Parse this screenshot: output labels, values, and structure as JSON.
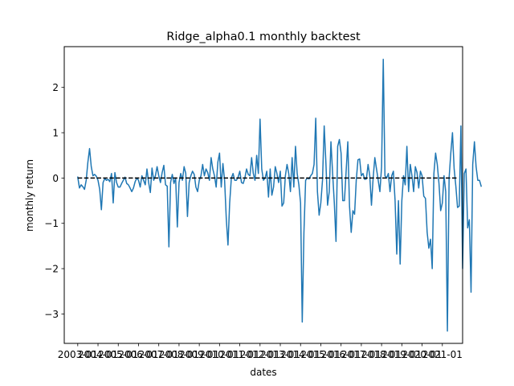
{
  "chart_data": {
    "type": "line",
    "title": "Ridge_alpha0.1 monthly backtest",
    "xlabel": "dates",
    "ylabel": "monthly return",
    "xlim": [
      "2002-05",
      "2022-01"
    ],
    "ylim": [
      -3.65,
      2.9
    ],
    "yticks": [
      2,
      1,
      0,
      -1,
      -2,
      -3
    ],
    "ytick_labels": [
      "2",
      "1",
      "0",
      "−1",
      "−2",
      "−3"
    ],
    "xtick_labels": [
      "2003-01",
      "2004-01",
      "2005-01",
      "2006-01",
      "2007-01",
      "2008-01",
      "2009-01",
      "2010-01",
      "2011-01",
      "2012-01",
      "2013-01",
      "2014-01",
      "2015-01",
      "2016-01",
      "2017-01",
      "2018-01",
      "2019-01",
      "2020-01",
      "2021-01"
    ],
    "grid": false,
    "series": [
      {
        "color": "#1f77b4",
        "start": "2003-01",
        "values": [
          0.02,
          -0.22,
          -0.15,
          -0.19,
          -0.25,
          -0.05,
          0.35,
          0.65,
          0.25,
          0.05,
          0.08,
          0.04,
          -0.05,
          -0.25,
          -0.7,
          -0.1,
          -0.01,
          -0.05,
          -0.03,
          -0.08,
          0.1,
          -0.55,
          0.12,
          -0.1,
          -0.2,
          -0.2,
          -0.12,
          -0.05,
          0.02,
          -0.12,
          -0.15,
          -0.22,
          -0.3,
          -0.22,
          -0.08,
          0.0,
          -0.05,
          -0.2,
          0.05,
          -0.05,
          -0.15,
          0.2,
          -0.1,
          -0.32,
          0.22,
          -0.05,
          0.05,
          0.25,
          0.05,
          -0.1,
          0.12,
          0.28,
          -0.15,
          -0.18,
          -1.52,
          -0.1,
          0.08,
          -0.12,
          0.0,
          -1.08,
          -0.1,
          0.1,
          -0.05,
          0.25,
          0.1,
          -0.85,
          -0.1,
          0.05,
          0.15,
          0.08,
          -0.2,
          -0.3,
          -0.05,
          0.05,
          0.3,
          0.05,
          0.2,
          0.12,
          -0.05,
          0.45,
          0.2,
          0.05,
          -0.2,
          0.35,
          0.55,
          -0.2,
          0.32,
          -0.05,
          -0.9,
          -1.48,
          -0.55,
          0.0,
          0.1,
          -0.05,
          -0.05,
          0.02,
          0.15,
          -0.1,
          -0.12,
          0.0,
          0.2,
          0.08,
          0.05,
          0.45,
          0.1,
          -0.05,
          0.5,
          0.1,
          1.3,
          0.2,
          -0.05,
          0.0,
          0.15,
          -0.42,
          0.2,
          -0.38,
          -0.2,
          0.25,
          0.1,
          -0.1,
          0.15,
          -0.62,
          -0.55,
          0.05,
          0.3,
          0.1,
          -0.3,
          0.45,
          -0.2,
          0.7,
          0.1,
          -0.15,
          -0.55,
          -3.18,
          -1.2,
          -0.05,
          0.0,
          -0.02,
          0.05,
          0.1,
          0.3,
          1.32,
          -0.3,
          -0.82,
          -0.55,
          -0.05,
          1.15,
          0.35,
          -0.6,
          -0.3,
          0.8,
          0.1,
          -0.55,
          -1.4,
          0.7,
          0.85,
          0.55,
          -0.5,
          -0.5,
          0.15,
          0.8,
          -0.62,
          -1.2,
          -0.72,
          -0.8,
          -0.05,
          0.4,
          0.42,
          0.05,
          0.1,
          -0.03,
          -0.02,
          0.3,
          0.05,
          -0.6,
          0.0,
          0.45,
          0.2,
          -0.05,
          -0.3,
          0.25,
          2.62,
          0.05,
          0.0,
          0.1,
          -0.3,
          0.05,
          0.15,
          -0.5,
          -1.68,
          -0.5,
          -1.9,
          -0.5,
          0.05,
          -0.15,
          0.7,
          -0.3,
          0.3,
          0.05,
          -0.3,
          0.25,
          0.12,
          -0.22,
          0.15,
          0.05,
          -0.4,
          -0.45,
          -1.2,
          -1.55,
          -1.35,
          -2.0,
          0.1,
          0.55,
          0.3,
          -0.12,
          -0.72,
          -0.55,
          0.05,
          -0.3,
          -3.38,
          0.0,
          0.55,
          1.0,
          0.2,
          -0.18,
          -0.65,
          -0.62,
          1.15,
          -2.0,
          0.1,
          0.2,
          -1.1,
          -0.92,
          -2.52,
          0.3,
          0.8,
          0.25,
          -0.05,
          -0.05,
          -0.18
        ]
      },
      {
        "color": "#000000",
        "line_style": "dashed",
        "start": "2003-01",
        "end": "2021-10",
        "constant": 0
      }
    ]
  }
}
